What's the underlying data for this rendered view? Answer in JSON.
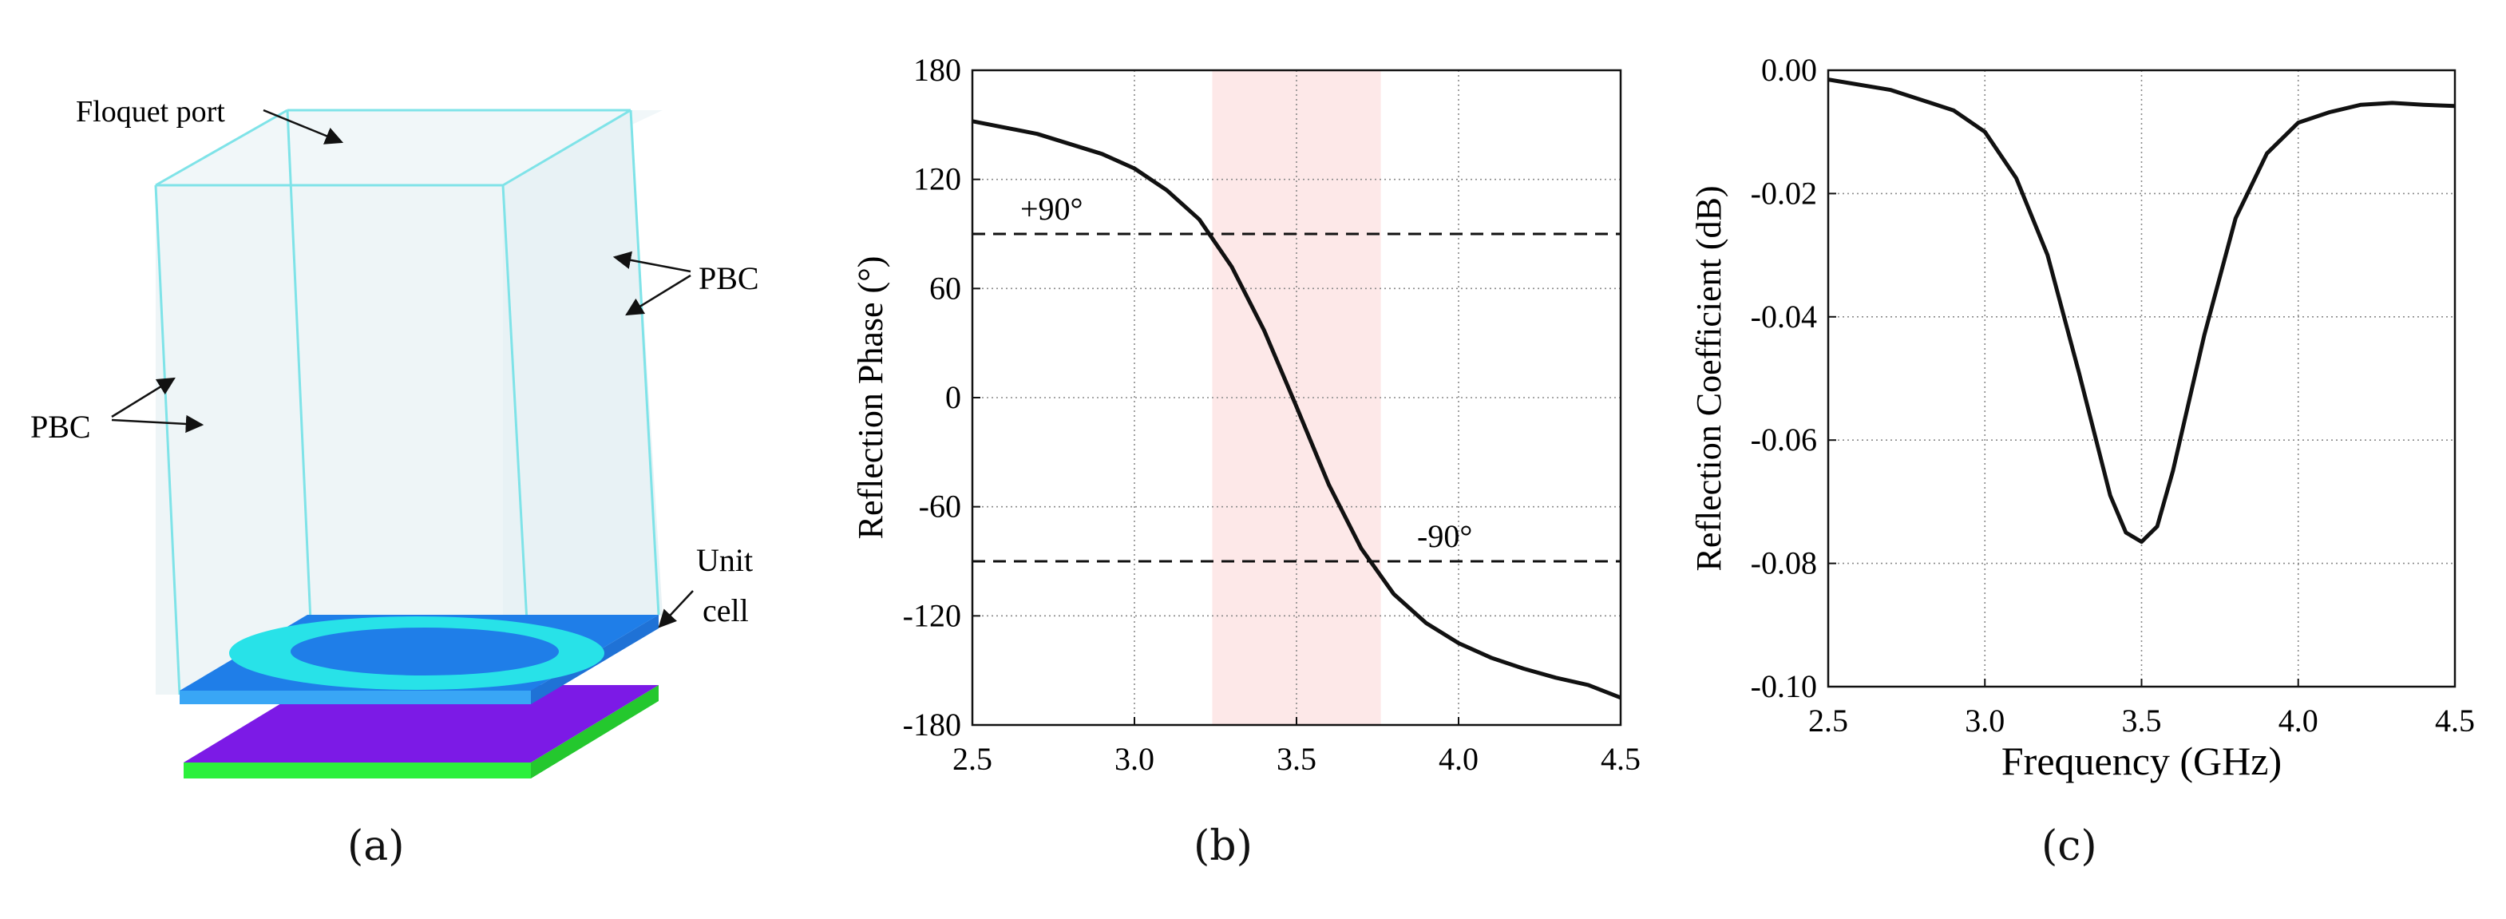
{
  "panel_a": {
    "annotations": {
      "floquet": "Floquet port",
      "pbc_right": "PBC",
      "pbc_left": "PBC",
      "unit_line1": "Unit",
      "unit_line2": "cell"
    },
    "colors": {
      "box_edge": "#7fe3e8",
      "box_fill": "#eaf4f7",
      "patch_top": "#1f7ee8",
      "ring": "#28e2e8",
      "substrate": "#7c1ae6",
      "ground": "#2cf03c"
    }
  },
  "labels": {
    "a": "(a)",
    "b": "(b)",
    "c": "(c)"
  },
  "chart_data": [
    {
      "type": "line",
      "ylabel": "Reflection Phase (°)",
      "xlim": [
        2.5,
        4.5
      ],
      "ylim": [
        -180,
        180
      ],
      "xticks": [
        "2.5",
        "3.0",
        "3.5",
        "4.0",
        "4.5"
      ],
      "yticks": [
        "180",
        "120",
        "60",
        "0",
        "-60",
        "-120",
        "-180"
      ],
      "grid": true,
      "band": {
        "x_start": 3.24,
        "x_end": 3.76,
        "color": "#fde8e8"
      },
      "reference_lines": [
        {
          "y": 90,
          "label": "+90°"
        },
        {
          "y": -90,
          "label": "-90°"
        }
      ],
      "series": [
        {
          "color": "#111111",
          "x": [
            2.5,
            2.7,
            2.9,
            3.0,
            3.1,
            3.2,
            3.3,
            3.4,
            3.5,
            3.6,
            3.7,
            3.8,
            3.9,
            4.0,
            4.1,
            4.2,
            4.3,
            4.4,
            4.5
          ],
          "y": [
            152,
            145,
            134,
            126,
            114,
            98,
            72,
            37,
            -5,
            -48,
            -83,
            -108,
            -124,
            -135,
            -143,
            -149,
            -154,
            -158,
            -165
          ]
        }
      ]
    },
    {
      "type": "line",
      "xlabel": "Frequency (GHz)",
      "ylabel": "Reflection Coefficient (dB)",
      "xlim": [
        2.5,
        4.5
      ],
      "ylim": [
        -0.1,
        0.0
      ],
      "xticks": [
        "2.5",
        "3.0",
        "3.5",
        "4.0",
        "4.5"
      ],
      "yticks": [
        "0.00",
        "-0.02",
        "-0.04",
        "-0.06",
        "-0.08",
        "-0.10"
      ],
      "grid": true,
      "series": [
        {
          "color": "#111111",
          "x": [
            2.5,
            2.7,
            2.9,
            3.0,
            3.1,
            3.2,
            3.3,
            3.4,
            3.45,
            3.5,
            3.55,
            3.6,
            3.7,
            3.8,
            3.9,
            4.0,
            4.1,
            4.2,
            4.3,
            4.4,
            4.5
          ],
          "y": [
            -0.0015,
            -0.0032,
            -0.0065,
            -0.01,
            -0.0175,
            -0.03,
            -0.049,
            -0.069,
            -0.075,
            -0.0765,
            -0.074,
            -0.065,
            -0.043,
            -0.024,
            -0.0135,
            -0.0085,
            -0.0068,
            -0.0056,
            -0.0053,
            -0.0056,
            -0.0058
          ]
        }
      ]
    }
  ]
}
